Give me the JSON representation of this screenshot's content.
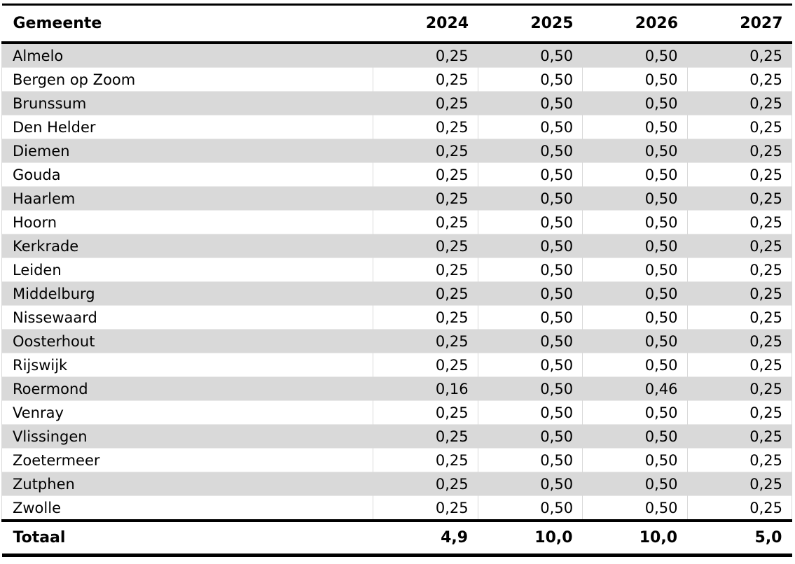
{
  "table": {
    "title_column": "Gemeente",
    "years": [
      "2024",
      "2025",
      "2026",
      "2027"
    ],
    "rows": [
      {
        "name": "Almelo",
        "values": [
          "0,25",
          "0,50",
          "0,50",
          "0,25"
        ]
      },
      {
        "name": "Bergen op Zoom",
        "values": [
          "0,25",
          "0,50",
          "0,50",
          "0,25"
        ]
      },
      {
        "name": "Brunssum",
        "values": [
          "0,25",
          "0,50",
          "0,50",
          "0,25"
        ]
      },
      {
        "name": "Den Helder",
        "values": [
          "0,25",
          "0,50",
          "0,50",
          "0,25"
        ]
      },
      {
        "name": "Diemen",
        "values": [
          "0,25",
          "0,50",
          "0,50",
          "0,25"
        ]
      },
      {
        "name": "Gouda",
        "values": [
          "0,25",
          "0,50",
          "0,50",
          "0,25"
        ]
      },
      {
        "name": "Haarlem",
        "values": [
          "0,25",
          "0,50",
          "0,50",
          "0,25"
        ]
      },
      {
        "name": "Hoorn",
        "values": [
          "0,25",
          "0,50",
          "0,50",
          "0,25"
        ]
      },
      {
        "name": "Kerkrade",
        "values": [
          "0,25",
          "0,50",
          "0,50",
          "0,25"
        ]
      },
      {
        "name": "Leiden",
        "values": [
          "0,25",
          "0,50",
          "0,50",
          "0,25"
        ]
      },
      {
        "name": "Middelburg",
        "values": [
          "0,25",
          "0,50",
          "0,50",
          "0,25"
        ]
      },
      {
        "name": "Nissewaard",
        "values": [
          "0,25",
          "0,50",
          "0,50",
          "0,25"
        ]
      },
      {
        "name": "Oosterhout",
        "values": [
          "0,25",
          "0,50",
          "0,50",
          "0,25"
        ]
      },
      {
        "name": "Rijswijk",
        "values": [
          "0,25",
          "0,50",
          "0,50",
          "0,25"
        ]
      },
      {
        "name": "Roermond",
        "values": [
          "0,16",
          "0,50",
          "0,46",
          "0,25"
        ]
      },
      {
        "name": "Venray",
        "values": [
          "0,25",
          "0,50",
          "0,50",
          "0,25"
        ]
      },
      {
        "name": "Vlissingen",
        "values": [
          "0,25",
          "0,50",
          "0,50",
          "0,25"
        ]
      },
      {
        "name": "Zoetermeer",
        "values": [
          "0,25",
          "0,50",
          "0,50",
          "0,25"
        ]
      },
      {
        "name": "Zutphen",
        "values": [
          "0,25",
          "0,50",
          "0,50",
          "0,25"
        ]
      },
      {
        "name": "Zwolle",
        "values": [
          "0,25",
          "0,50",
          "0,50",
          "0,25"
        ]
      }
    ],
    "total": {
      "label": "Totaal",
      "values": [
        "4,9",
        "10,0",
        "10,0",
        "5,0"
      ]
    }
  },
  "colors": {
    "row_stripe": "#d9d9d9",
    "rule": "#000000"
  }
}
